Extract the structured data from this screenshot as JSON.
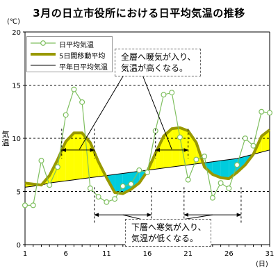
{
  "chart_data": {
    "type": "line",
    "title": "3月の日立市役所における日平均気温の推移",
    "y_unit": "(℃)",
    "x_unit": "(日)",
    "ylabel": "気温",
    "xlim": [
      1,
      31
    ],
    "ylim": [
      0,
      20
    ],
    "x_ticks": [
      "1",
      "6",
      "11",
      "16",
      "21",
      "26",
      "31"
    ],
    "y_ticks": [
      "0",
      "5",
      "10",
      "15",
      "20"
    ],
    "grid": "horizontal dashed at 5, 10, 15",
    "legend_position": "top-left",
    "x": [
      1,
      2,
      3,
      4,
      5,
      6,
      7,
      8,
      9,
      10,
      11,
      12,
      13,
      14,
      15,
      16,
      17,
      18,
      19,
      20,
      21,
      22,
      23,
      24,
      25,
      26,
      27,
      28,
      29,
      30,
      31
    ],
    "series": [
      {
        "name": "日平均気温",
        "style": "line-with-open-circles",
        "color": "#7fbf5f",
        "values": [
          3.7,
          3.7,
          7.9,
          5.6,
          7.3,
          12.2,
          14.6,
          13.4,
          5.3,
          4.5,
          4.0,
          4.3,
          5.5,
          5.7,
          7.0,
          6.8,
          10.7,
          14.1,
          14.3,
          10.1,
          6.1,
          8.0,
          8.3,
          4.4,
          5.8,
          5.3,
          7.5,
          10.0,
          9.3,
          12.5,
          12.4
        ]
      },
      {
        "name": "5日間移動平均",
        "style": "thick-line",
        "color": "#999900",
        "values": [
          5.8,
          5.7,
          5.6,
          6.5,
          8.0,
          9.7,
          10.5,
          10.5,
          9.6,
          7.8,
          6.3,
          4.9,
          4.8,
          5.2,
          5.8,
          6.9,
          8.6,
          10.2,
          10.9,
          11.0,
          10.7,
          9.6,
          7.3,
          6.6,
          6.3,
          6.2,
          6.8,
          7.5,
          8.5,
          10.2,
          10.8
        ]
      },
      {
        "name": "平年日平均気温",
        "style": "thin-line",
        "color": "#000000",
        "values": [
          5.4,
          5.5,
          5.6,
          5.8,
          5.9,
          6.0,
          6.1,
          6.2,
          6.3,
          6.4,
          6.5,
          6.6,
          6.7,
          6.8,
          6.9,
          7.0,
          7.1,
          7.2,
          7.3,
          7.4,
          7.5,
          7.6,
          7.7,
          7.8,
          7.9,
          8.0,
          8.1,
          8.3,
          8.5,
          8.7,
          8.9
        ]
      }
    ],
    "fill_above_color": "#ffff00",
    "fill_below_color": "#00ccdd",
    "annotations": {
      "warm": [
        "全層へ暖気が入り、",
        "気温が高くなる。"
      ],
      "cold": [
        "下層へ寒気が入り、",
        "気温が低くなる。"
      ],
      "warm_arrows_days": [
        [
          5.5,
          9.5
        ],
        [
          17,
          21
        ]
      ],
      "cold_arrows_days": [
        [
          9.5,
          16.5
        ],
        [
          20.5,
          27.5
        ]
      ]
    }
  }
}
